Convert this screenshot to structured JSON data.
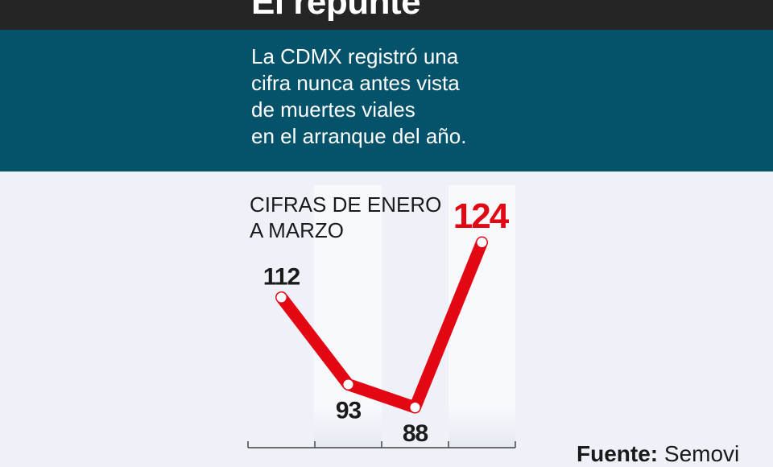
{
  "header": {
    "title": "El repunte"
  },
  "subtitle_lines": [
    "La CDMX registró una",
    "cifra nunca antes vista",
    "de muertes viales",
    "en el arranque del año."
  ],
  "chart_data": {
    "type": "line",
    "title": "CIFRAS DE ENERO A MARZO",
    "title_lines": [
      "CIFRAS DE ENERO",
      "A MARZO"
    ],
    "categories": [
      "",
      "",
      "",
      ""
    ],
    "values": [
      112,
      93,
      88,
      124
    ],
    "labels": [
      "112",
      "93",
      "88",
      "124"
    ],
    "highlight_index": 3,
    "ylim": [
      80,
      130
    ],
    "grid": false,
    "colors": {
      "line": "#e30613",
      "highlight_label": "#e30613",
      "label": "#1a1a1a",
      "header": "#252525",
      "band": "#04536a",
      "background": "#eef1f8"
    }
  },
  "source": {
    "label": "Fuente:",
    "value": "Semovi"
  }
}
